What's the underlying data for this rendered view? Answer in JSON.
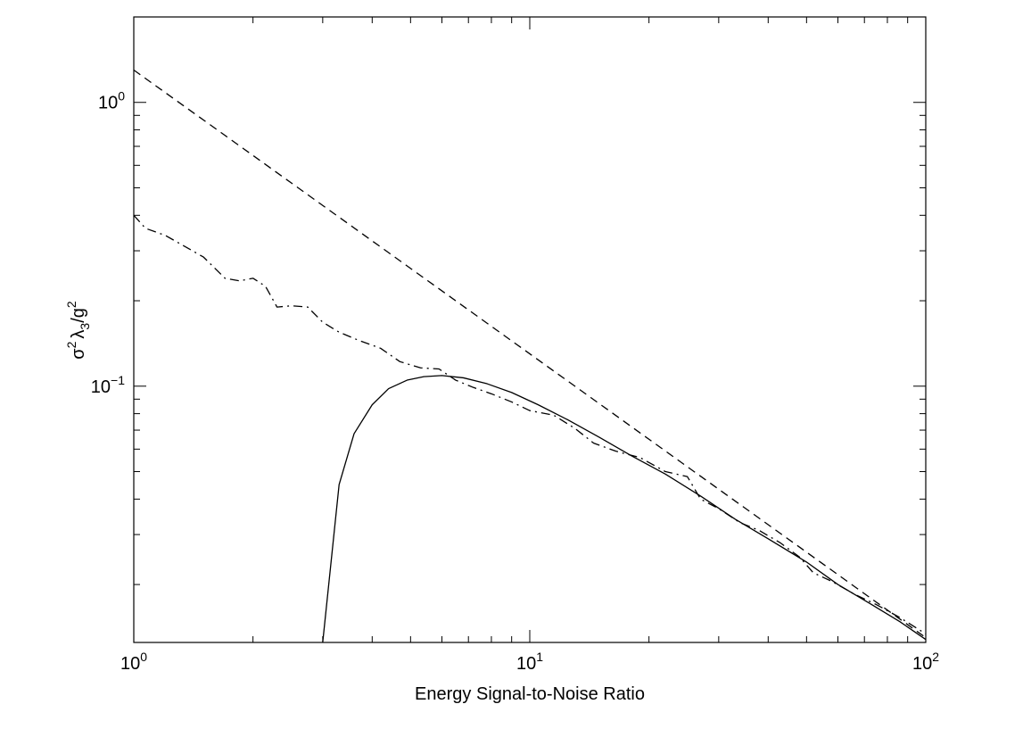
{
  "chart_data": {
    "type": "line",
    "title": "",
    "xlabel": "Energy Signal-to-Noise Ratio",
    "ylabel": {
      "sigma": "σ",
      "sup1": "2",
      "lambda": "λ",
      "sub": "3",
      "rest": "/g",
      "sup2": "2"
    },
    "xscale": "log",
    "yscale": "log",
    "xlim": [
      1,
      100
    ],
    "ylim": [
      0.0125,
      2.0
    ],
    "x_major_ticks": [
      {
        "value": 1,
        "base": "10",
        "exp": "0"
      },
      {
        "value": 10,
        "base": "10",
        "exp": "1"
      },
      {
        "value": 100,
        "base": "10",
        "exp": "2"
      }
    ],
    "y_major_ticks": [
      {
        "value": 0.1,
        "base": "10",
        "exp": "−1"
      },
      {
        "value": 1,
        "base": "10",
        "exp": "0"
      }
    ],
    "grid": false,
    "series": [
      {
        "name": "dashed",
        "style": "dashed",
        "x": [
          1,
          100
        ],
        "y": [
          1.3,
          0.013
        ]
      },
      {
        "name": "dash-dot",
        "style": "dashdot",
        "x": [
          1.0,
          1.07,
          1.2,
          1.35,
          1.5,
          1.7,
          1.85,
          2.0,
          2.15,
          2.3,
          2.5,
          2.75,
          3.0,
          3.3,
          3.7,
          4.2,
          4.7,
          5.3,
          5.9,
          6.5,
          7.2,
          8.0,
          9.0,
          10.0,
          11.5,
          13.0,
          14.5,
          16.5,
          19.0,
          22.0,
          25.0,
          27.0,
          30.0,
          34.0,
          38.0,
          43.0,
          48.0,
          52.0,
          58.0,
          66.0,
          75.0,
          86.0,
          100.0
        ],
        "y": [
          0.4,
          0.36,
          0.34,
          0.31,
          0.285,
          0.24,
          0.235,
          0.24,
          0.225,
          0.19,
          0.192,
          0.19,
          0.168,
          0.155,
          0.145,
          0.136,
          0.122,
          0.116,
          0.115,
          0.105,
          0.099,
          0.094,
          0.088,
          0.082,
          0.079,
          0.071,
          0.063,
          0.059,
          0.056,
          0.05,
          0.048,
          0.04,
          0.037,
          0.033,
          0.031,
          0.028,
          0.025,
          0.022,
          0.0205,
          0.0185,
          0.017,
          0.0153,
          0.0134
        ]
      },
      {
        "name": "solid",
        "style": "solid",
        "x": [
          3.0,
          3.3,
          3.6,
          4.0,
          4.4,
          4.9,
          5.4,
          6.0,
          6.8,
          7.8,
          9.0,
          10.5,
          12.5,
          15.0,
          18.0,
          22.0,
          27.0,
          33.0,
          40.0,
          50.0,
          60.0,
          72.0,
          86.0,
          100.0
        ],
        "y": [
          0.0125,
          0.045,
          0.068,
          0.086,
          0.098,
          0.105,
          0.108,
          0.109,
          0.107,
          0.102,
          0.095,
          0.086,
          0.076,
          0.066,
          0.057,
          0.049,
          0.041,
          0.034,
          0.029,
          0.024,
          0.02,
          0.0172,
          0.0148,
          0.0128
        ]
      }
    ]
  }
}
